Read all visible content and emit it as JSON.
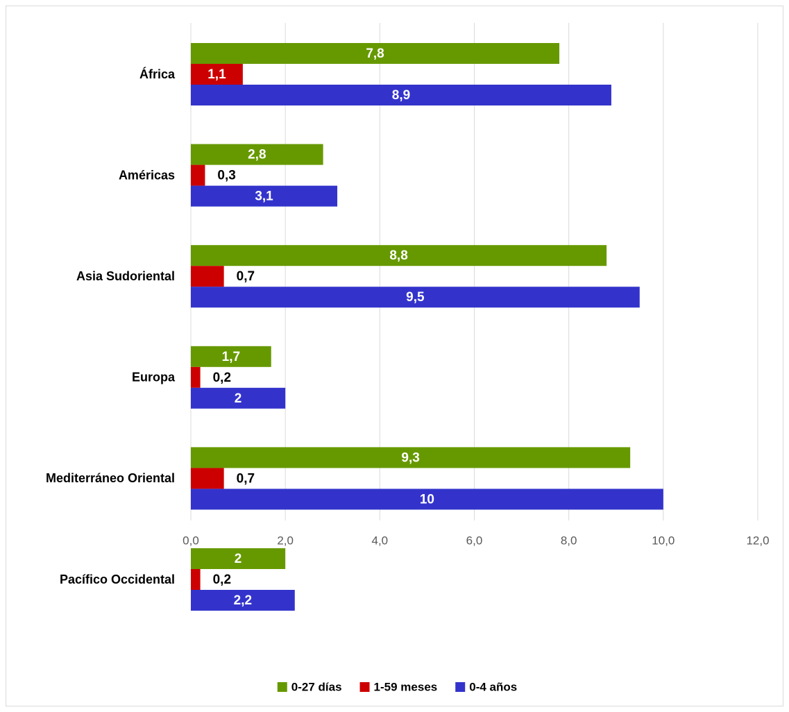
{
  "chart_data": {
    "type": "bar",
    "orientation": "horizontal",
    "categories": [
      "África",
      "Américas",
      "Asia Sudoriental",
      "Europa",
      "Mediterráneo Oriental",
      "Pacífico Occidental"
    ],
    "series": [
      {
        "name": "0-27 días",
        "color": "#669900",
        "values": [
          7.8,
          2.8,
          8.8,
          1.7,
          9.3,
          2
        ],
        "labels": [
          "7,8",
          "2,8",
          "8,8",
          "1,7",
          "9,3",
          "2"
        ]
      },
      {
        "name": "1-59 meses",
        "color": "#cc0000",
        "values": [
          1.1,
          0.3,
          0.7,
          0.2,
          0.7,
          0.2
        ],
        "labels": [
          "1,1",
          "0,3",
          "0,7",
          "0,2",
          "0,7",
          "0,2"
        ]
      },
      {
        "name": "0-4 años",
        "color": "#3333cc",
        "values": [
          8.9,
          3.1,
          9.5,
          2,
          10,
          2.2
        ],
        "labels": [
          "8,9",
          "3,1",
          "9,5",
          "2",
          "10",
          "2,2"
        ]
      }
    ],
    "xlim": [
      0,
      12
    ],
    "x_ticks": [
      0,
      2,
      4,
      6,
      8,
      10,
      12
    ],
    "x_tick_labels": [
      "0,0",
      "2,0",
      "4,0",
      "6,0",
      "8,0",
      "10,0",
      "12,0"
    ],
    "grid": true,
    "legend_position": "bottom",
    "title": "",
    "xlabel": "",
    "ylabel": ""
  },
  "colors": {
    "gridline": "#d9d9d9",
    "border": "#d9d9d9"
  }
}
